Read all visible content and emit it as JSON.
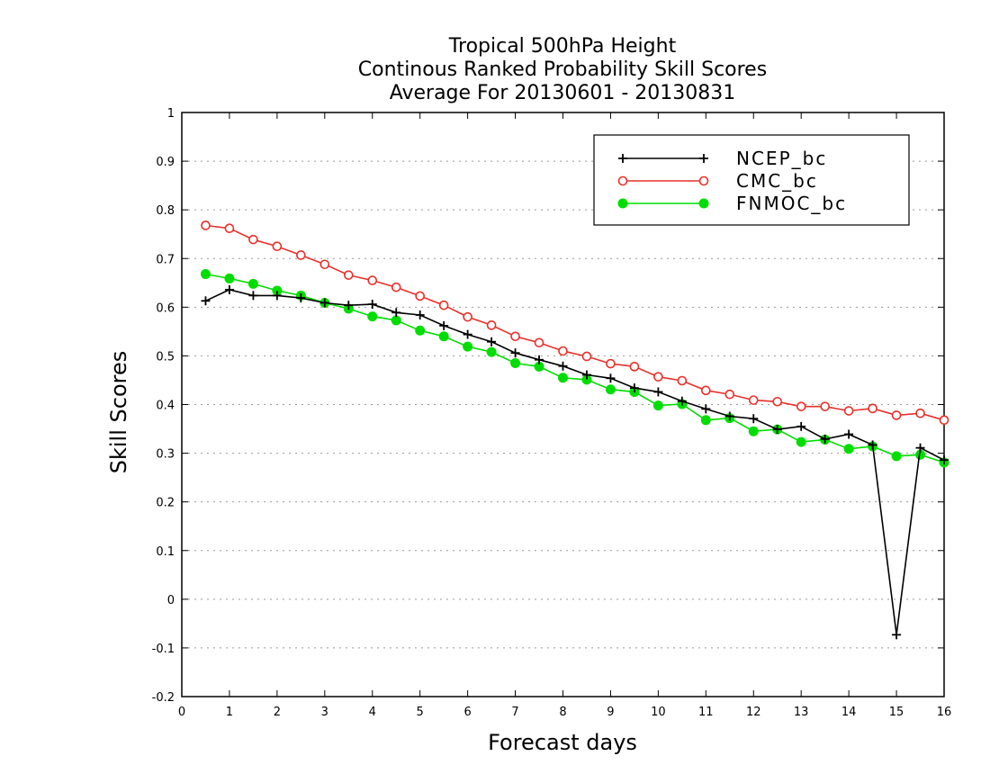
{
  "chart_data": {
    "type": "line",
    "title_lines": [
      "Tropical 500hPa Height",
      "Continous Ranked Probability Skill Scores",
      "Average For 20130601 - 20130831"
    ],
    "xlabel": "Forecast days",
    "ylabel": "Skill Scores",
    "xlim": [
      0,
      16
    ],
    "ylim": [
      -0.2,
      1
    ],
    "xticks": [
      "0",
      "1",
      "2",
      "3",
      "4",
      "5",
      "6",
      "7",
      "8",
      "9",
      "10",
      "11",
      "12",
      "13",
      "14",
      "15",
      "16"
    ],
    "yticks": [
      "-0.2",
      "-0.1",
      "0",
      "0.1",
      "0.2",
      "0.3",
      "0.4",
      "0.5",
      "0.6",
      "0.7",
      "0.8",
      "0.9",
      "1"
    ],
    "grid": "horizontal-dotted",
    "legend_position": "top-right",
    "x": [
      0.5,
      1,
      1.5,
      2,
      2.5,
      3,
      3.5,
      4,
      4.5,
      5,
      5.5,
      6,
      6.5,
      7,
      7.5,
      8,
      8.5,
      9,
      9.5,
      10,
      10.5,
      11,
      11.5,
      12,
      12.5,
      13,
      13.5,
      14,
      14.5,
      15,
      15.5,
      16
    ],
    "series": [
      {
        "name": "NCEP_bc",
        "color": "#000000",
        "marker": "plus",
        "values": [
          0.613,
          0.636,
          0.624,
          0.624,
          0.619,
          0.609,
          0.604,
          0.606,
          0.589,
          0.584,
          0.562,
          0.544,
          0.529,
          0.506,
          0.492,
          0.479,
          0.461,
          0.454,
          0.434,
          0.426,
          0.407,
          0.391,
          0.376,
          0.371,
          0.349,
          0.355,
          0.329,
          0.339,
          0.317,
          -0.073,
          0.311,
          0.286
        ]
      },
      {
        "name": "CMC_bc",
        "color": "#e8302a",
        "marker": "open-circle",
        "values": [
          0.768,
          0.762,
          0.739,
          0.725,
          0.707,
          0.688,
          0.666,
          0.655,
          0.641,
          0.623,
          0.604,
          0.58,
          0.563,
          0.54,
          0.527,
          0.51,
          0.499,
          0.484,
          0.478,
          0.457,
          0.449,
          0.429,
          0.421,
          0.409,
          0.406,
          0.396,
          0.396,
          0.387,
          0.392,
          0.378,
          0.382,
          0.368
        ]
      },
      {
        "name": "FNMOC_bc",
        "color": "#00dd00",
        "marker": "filled-circle",
        "values": [
          0.668,
          0.659,
          0.648,
          0.634,
          0.624,
          0.609,
          0.597,
          0.581,
          0.573,
          0.552,
          0.54,
          0.519,
          0.508,
          0.485,
          0.478,
          0.455,
          0.451,
          0.431,
          0.426,
          0.398,
          0.401,
          0.368,
          0.372,
          0.345,
          0.349,
          0.323,
          0.328,
          0.309,
          0.314,
          0.294,
          0.297,
          0.281
        ]
      }
    ]
  }
}
